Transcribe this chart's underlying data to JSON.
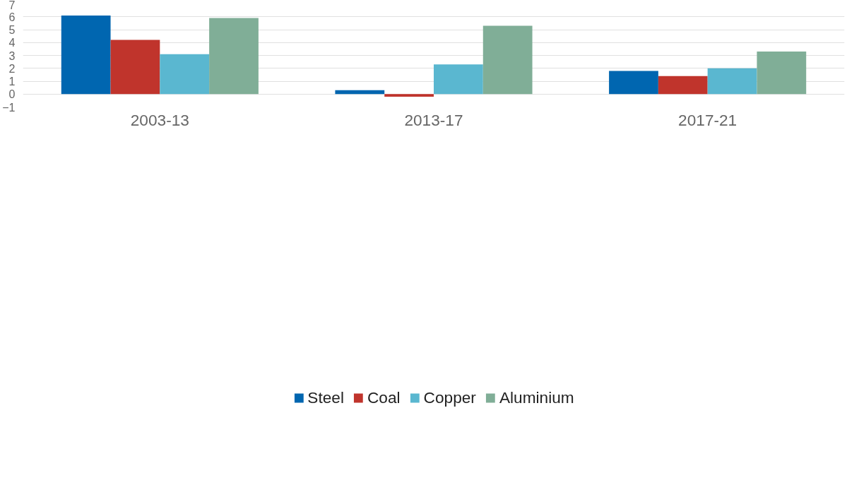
{
  "chart_data": {
    "type": "bar",
    "categories": [
      "2003-13",
      "2013-17",
      "2017-21"
    ],
    "series": [
      {
        "name": "Steel",
        "color": "#0066b0",
        "values": [
          6.1,
          0.3,
          1.8
        ]
      },
      {
        "name": "Coal",
        "color": "#c0342c",
        "values": [
          4.2,
          -0.2,
          1.4
        ]
      },
      {
        "name": "Copper",
        "color": "#5ab7d0",
        "values": [
          3.1,
          2.3,
          2.0
        ]
      },
      {
        "name": "Aluminium",
        "color": "#80ae97",
        "values": [
          5.9,
          5.3,
          3.3
        ]
      }
    ],
    "ylim": [
      -1,
      7
    ],
    "yticks": [
      -1,
      0,
      1,
      2,
      3,
      4,
      5,
      6,
      7
    ],
    "grid": "y",
    "legend": "bottom"
  }
}
